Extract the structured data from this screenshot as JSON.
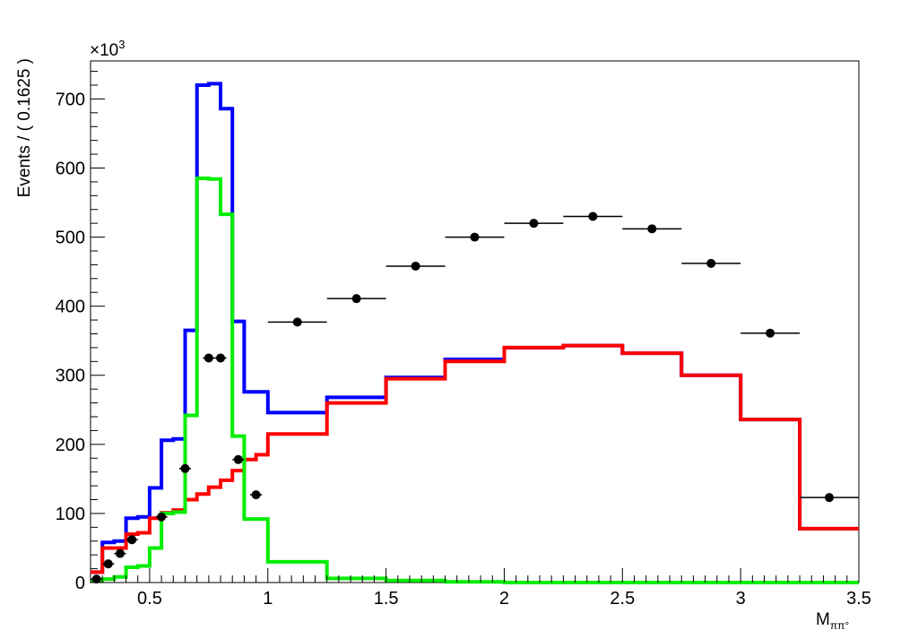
{
  "chart_data": {
    "type": "histogram",
    "xlabel": "M",
    "xlabel_subscript": "ππ°",
    "ylabel": "Events / ( 0.1625 )",
    "y_exponent_base": "×10",
    "y_exponent_power": "3",
    "xlim": [
      0.25,
      3.5
    ],
    "ylim": [
      0,
      755
    ],
    "x_ticks": [
      0.5,
      1,
      1.5,
      2,
      2.5,
      3,
      3.5
    ],
    "x_tick_labels": [
      "0.5",
      "1",
      "1.5",
      "2",
      "2.5",
      "3",
      "3.5"
    ],
    "y_ticks": [
      0,
      100,
      200,
      300,
      400,
      500,
      600,
      700
    ],
    "y_tick_labels": [
      "0",
      "100",
      "200",
      "300",
      "400",
      "500",
      "600",
      "700"
    ],
    "grid": false,
    "data_points": [
      {
        "x": 0.275,
        "y": 5,
        "xerr": 0.025
      },
      {
        "x": 0.325,
        "y": 27,
        "xerr": 0.025
      },
      {
        "x": 0.375,
        "y": 42,
        "xerr": 0.025
      },
      {
        "x": 0.425,
        "y": 62,
        "xerr": 0.025
      },
      {
        "x": 0.55,
        "y": 95,
        "xerr": 0.025
      },
      {
        "x": 0.65,
        "y": 165,
        "xerr": 0.025
      },
      {
        "x": 0.75,
        "y": 325,
        "xerr": 0.025
      },
      {
        "x": 0.8,
        "y": 325,
        "xerr": 0.025
      },
      {
        "x": 0.875,
        "y": 178,
        "xerr": 0.025
      },
      {
        "x": 0.95,
        "y": 127,
        "xerr": 0.025
      },
      {
        "x": 1.125,
        "y": 377,
        "xerr": 0.125
      },
      {
        "x": 1.375,
        "y": 411,
        "xerr": 0.125
      },
      {
        "x": 1.625,
        "y": 458,
        "xerr": 0.125
      },
      {
        "x": 1.875,
        "y": 500,
        "xerr": 0.125
      },
      {
        "x": 2.125,
        "y": 520,
        "xerr": 0.125
      },
      {
        "x": 2.375,
        "y": 530,
        "xerr": 0.125
      },
      {
        "x": 2.625,
        "y": 512,
        "xerr": 0.125
      },
      {
        "x": 2.875,
        "y": 462,
        "xerr": 0.125
      },
      {
        "x": 3.125,
        "y": 361,
        "xerr": 0.125
      },
      {
        "x": 3.375,
        "y": 123,
        "xerr": 0.125
      }
    ],
    "series": [
      {
        "color": "#0000ff",
        "edges": [
          0.25,
          0.3,
          0.35,
          0.4,
          0.45,
          0.5,
          0.55,
          0.6,
          0.65,
          0.7,
          0.75,
          0.8,
          0.85,
          0.9,
          0.95,
          1.0,
          1.25,
          1.5,
          1.75,
          2.0,
          2.25,
          2.5,
          2.75,
          3.0,
          3.25,
          3.5
        ],
        "values": [
          15,
          58,
          60,
          93,
          95,
          137,
          206,
          208,
          365,
          720,
          722,
          686,
          378,
          276,
          276,
          246,
          268,
          297,
          323,
          340,
          343,
          332,
          300,
          236,
          78
        ]
      },
      {
        "color": "#ff0000",
        "edges": [
          0.25,
          0.3,
          0.35,
          0.4,
          0.45,
          0.5,
          0.55,
          0.6,
          0.65,
          0.7,
          0.75,
          0.8,
          0.85,
          0.9,
          0.95,
          1.0,
          1.25,
          1.5,
          1.75,
          2.0,
          2.25,
          2.5,
          2.75,
          3.0,
          3.25,
          3.5
        ],
        "values": [
          15,
          50,
          50,
          70,
          72,
          93,
          101,
          105,
          120,
          128,
          138,
          148,
          162,
          178,
          185,
          215,
          260,
          295,
          320,
          340,
          343,
          332,
          300,
          236,
          78
        ]
      },
      {
        "color": "#00ee00",
        "edges": [
          0.25,
          0.3,
          0.35,
          0.4,
          0.45,
          0.5,
          0.55,
          0.6,
          0.65,
          0.7,
          0.75,
          0.8,
          0.85,
          0.9,
          0.95,
          1.0,
          1.25,
          1.5,
          1.75,
          2.0,
          2.25,
          2.5,
          2.75,
          3.0,
          3.25,
          3.5
        ],
        "values": [
          2,
          5,
          8,
          22,
          24,
          50,
          100,
          102,
          242,
          585,
          584,
          533,
          212,
          92,
          92,
          30,
          6,
          3,
          1,
          0,
          0,
          0,
          0,
          0,
          0
        ]
      }
    ]
  }
}
